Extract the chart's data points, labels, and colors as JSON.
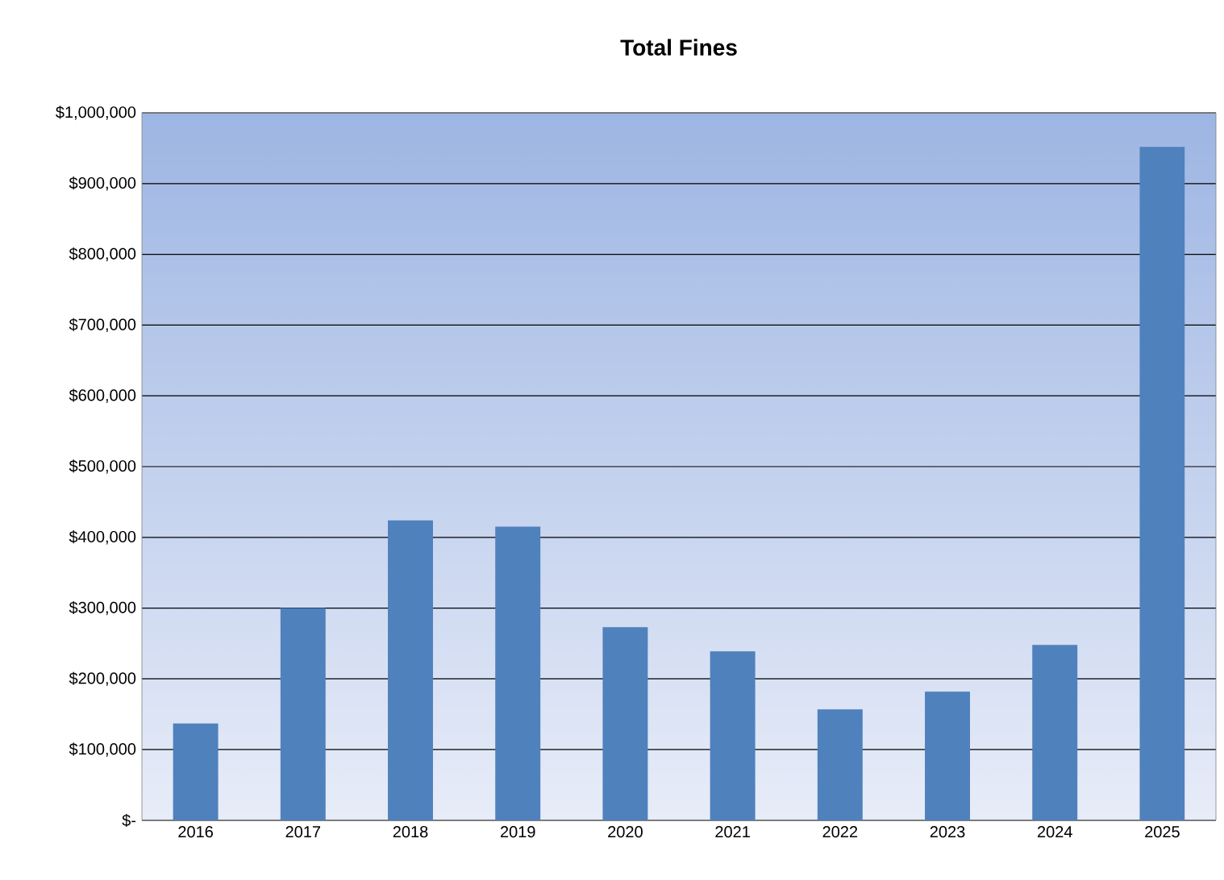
{
  "chart_data": {
    "type": "bar",
    "title": "Total Fines",
    "categories": [
      "2016",
      "2017",
      "2018",
      "2019",
      "2020",
      "2021",
      "2022",
      "2023",
      "2024",
      "2025"
    ],
    "values": [
      137000,
      300000,
      424000,
      415000,
      273000,
      239000,
      157000,
      182000,
      248000,
      952000
    ],
    "color": "#4f81bd",
    "ylim": [
      0,
      1000000
    ],
    "yticks": [
      {
        "value": 0,
        "label": "$-"
      },
      {
        "value": 100000,
        "label": "$100,000"
      },
      {
        "value": 200000,
        "label": "$200,000"
      },
      {
        "value": 300000,
        "label": "$300,000"
      },
      {
        "value": 400000,
        "label": "$400,000"
      },
      {
        "value": 500000,
        "label": "$500,000"
      },
      {
        "value": 600000,
        "label": "$600,000"
      },
      {
        "value": 700000,
        "label": "$700,000"
      },
      {
        "value": 800000,
        "label": "$800,000"
      },
      {
        "value": 900000,
        "label": "$900,000"
      },
      {
        "value": 1000000,
        "label": "$1,000,000"
      }
    ],
    "grid": "y"
  }
}
